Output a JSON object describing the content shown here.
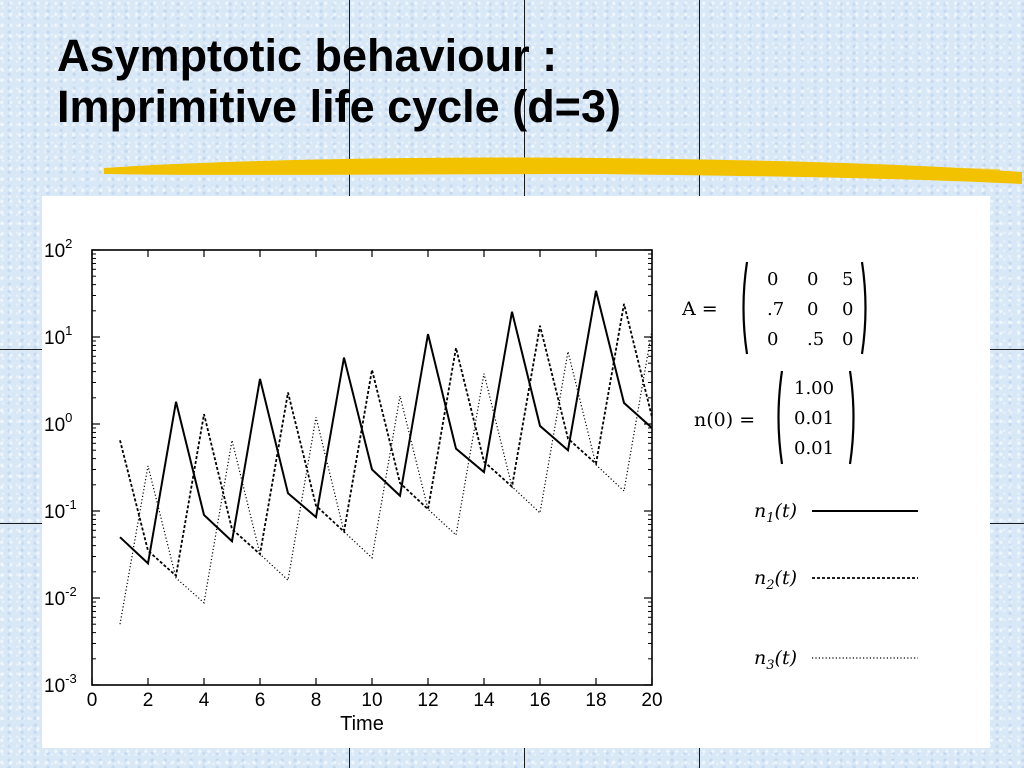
{
  "slide": {
    "title_line1": "Asymptotic behaviour :",
    "title_line2": "Imprimitive life cycle (d=3)",
    "colors": {
      "background": "#d9e8f7",
      "underline": "#f2c200",
      "title_text": "#000000",
      "panel": "#ffffff"
    }
  },
  "chart_data": {
    "type": "line",
    "xlabel": "Time",
    "ylabel": "",
    "xlim": [
      0,
      20
    ],
    "ylim": [
      0.001,
      100
    ],
    "yscale": "log",
    "x_ticks": [
      0,
      2,
      4,
      6,
      8,
      10,
      12,
      14,
      16,
      18,
      20
    ],
    "y_ticks": [
      {
        "value": 0.001,
        "base": "10",
        "exp": "-3"
      },
      {
        "value": 0.01,
        "base": "10",
        "exp": "-2"
      },
      {
        "value": 0.1,
        "base": "10",
        "exp": "-1"
      },
      {
        "value": 1,
        "base": "10",
        "exp": "0"
      },
      {
        "value": 10,
        "base": "10",
        "exp": "1"
      },
      {
        "value": 100,
        "base": "10",
        "exp": "2"
      }
    ],
    "x": [
      1,
      2,
      3,
      4,
      5,
      6,
      7,
      8,
      9,
      10,
      11,
      12,
      13,
      14,
      15,
      16,
      17,
      18,
      19,
      20
    ],
    "series": [
      {
        "name": "n1(t)",
        "style": "solid",
        "values": [
          0.05,
          0.025,
          1.8,
          0.09,
          0.045,
          3.3,
          0.16,
          0.085,
          5.8,
          0.3,
          0.15,
          10.8,
          0.52,
          0.28,
          19.5,
          0.95,
          0.5,
          34,
          1.75,
          0.9
        ]
      },
      {
        "name": "n2(t)",
        "style": "dashed",
        "values": [
          0.65,
          0.035,
          0.018,
          1.3,
          0.062,
          0.032,
          2.3,
          0.115,
          0.058,
          4.2,
          0.21,
          0.105,
          7.5,
          0.37,
          0.19,
          13.5,
          0.68,
          0.35,
          24,
          1.2
        ]
      },
      {
        "name": "n3(t)",
        "style": "dotted",
        "values": [
          0.005,
          0.33,
          0.017,
          0.0088,
          0.65,
          0.032,
          0.016,
          1.2,
          0.058,
          0.029,
          2.1,
          0.105,
          0.053,
          3.8,
          0.19,
          0.095,
          6.8,
          0.34,
          0.17,
          12
        ]
      }
    ],
    "legend_position": "right",
    "matrix": {
      "label": "A =",
      "rows": [
        [
          "0",
          "0",
          "5"
        ],
        [
          ".7",
          "0",
          "0"
        ],
        [
          "0",
          ".5",
          "0"
        ]
      ]
    },
    "initial_vector": {
      "label": "n(0) =",
      "values": [
        "1.00",
        "0.01",
        "0.01"
      ]
    }
  }
}
